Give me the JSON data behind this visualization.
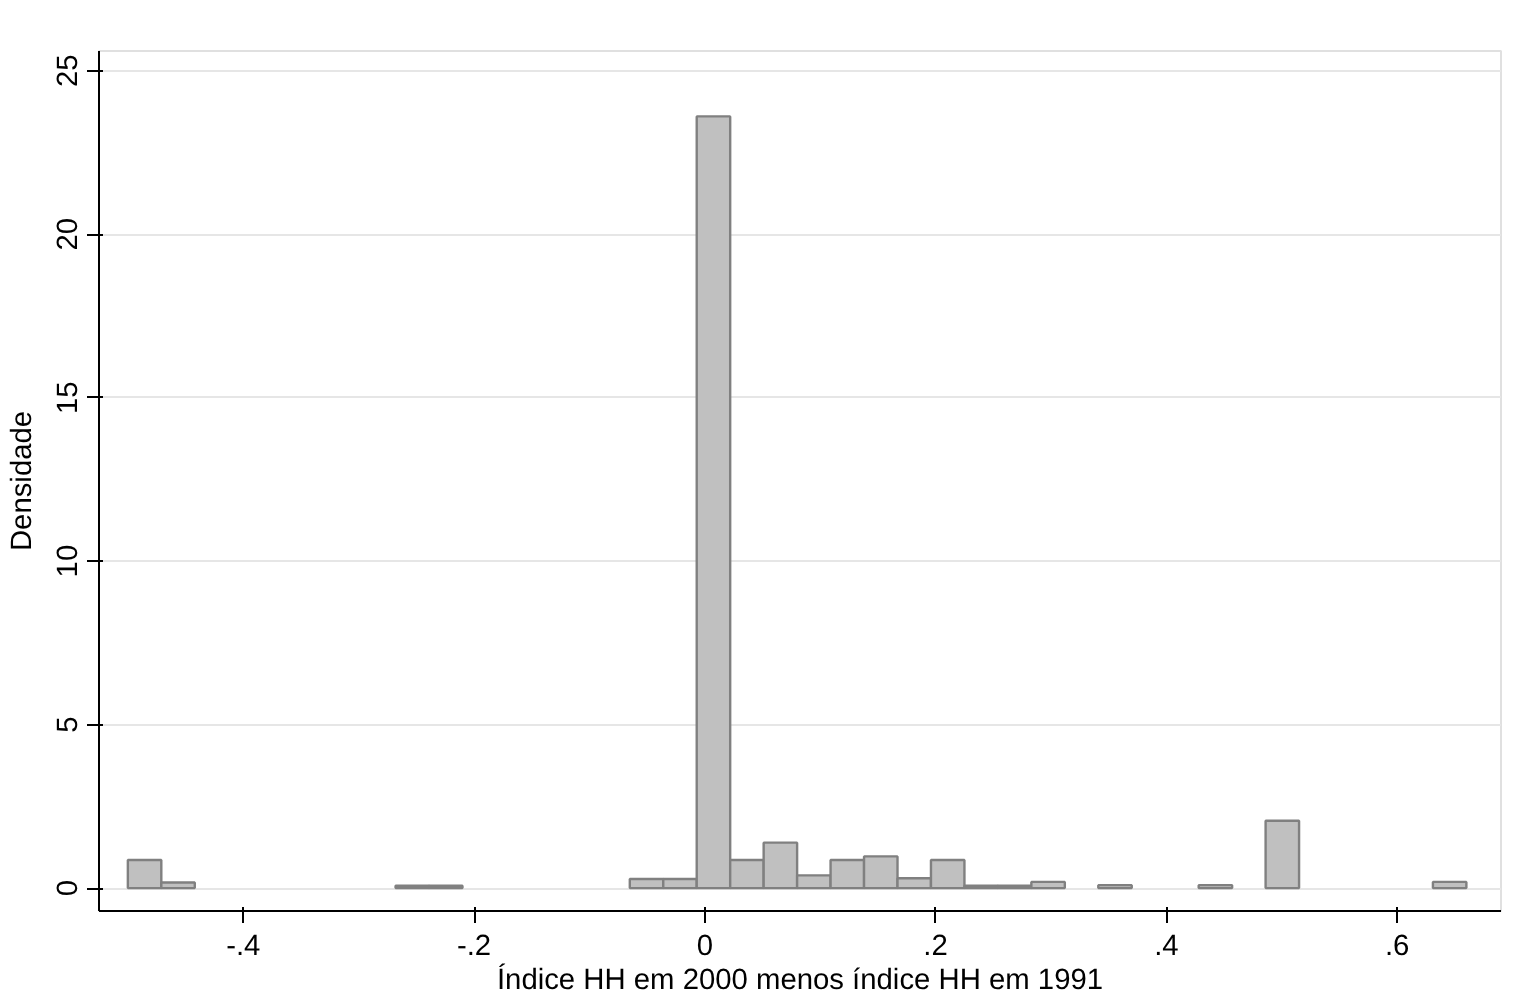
{
  "chart_data": {
    "type": "histogram",
    "xlabel": "Índice HH em 2000 menos índice HH em 1991",
    "ylabel": "Densidade",
    "bins": [
      -0.5,
      -0.471,
      -0.442,
      -0.413,
      -0.384,
      -0.355,
      -0.326,
      -0.297,
      -0.268,
      -0.239,
      -0.21,
      -0.181,
      -0.152,
      -0.123,
      -0.094,
      -0.065,
      -0.036,
      -0.007,
      0.022,
      0.051,
      0.08,
      0.109,
      0.138,
      0.167,
      0.196,
      0.225,
      0.254,
      0.283,
      0.312,
      0.341,
      0.37,
      0.399,
      0.428,
      0.457,
      0.486,
      0.515,
      0.544,
      0.573,
      0.602,
      0.631,
      0.66
    ],
    "values": [
      0.86,
      0.17,
      0,
      0,
      0,
      0,
      0,
      0,
      0.07,
      0.07,
      0,
      0,
      0,
      0,
      0,
      0.28,
      0.28,
      23.6,
      0.86,
      1.39,
      0.39,
      0.86,
      0.97,
      0.3,
      0.86,
      0.07,
      0.07,
      0.19,
      0,
      0.09,
      0,
      0,
      0.09,
      0,
      2.06,
      0,
      0,
      0,
      0,
      0.19
    ],
    "color": "#c0c0c0",
    "xlim": [
      -0.525,
      0.69
    ],
    "ylim": [
      -0.7,
      25.6
    ],
    "xticks": [
      {
        "value": -0.4,
        "label": "-.4"
      },
      {
        "value": -0.2,
        "label": "-.2"
      },
      0,
      {
        "value": 0.2,
        "label": ".2"
      },
      {
        "value": 0.4,
        "label": ".4"
      },
      {
        "value": 0.6,
        "label": ".6"
      }
    ],
    "yticks": [
      0,
      5,
      10,
      15,
      20,
      25
    ],
    "grid": "y"
  }
}
